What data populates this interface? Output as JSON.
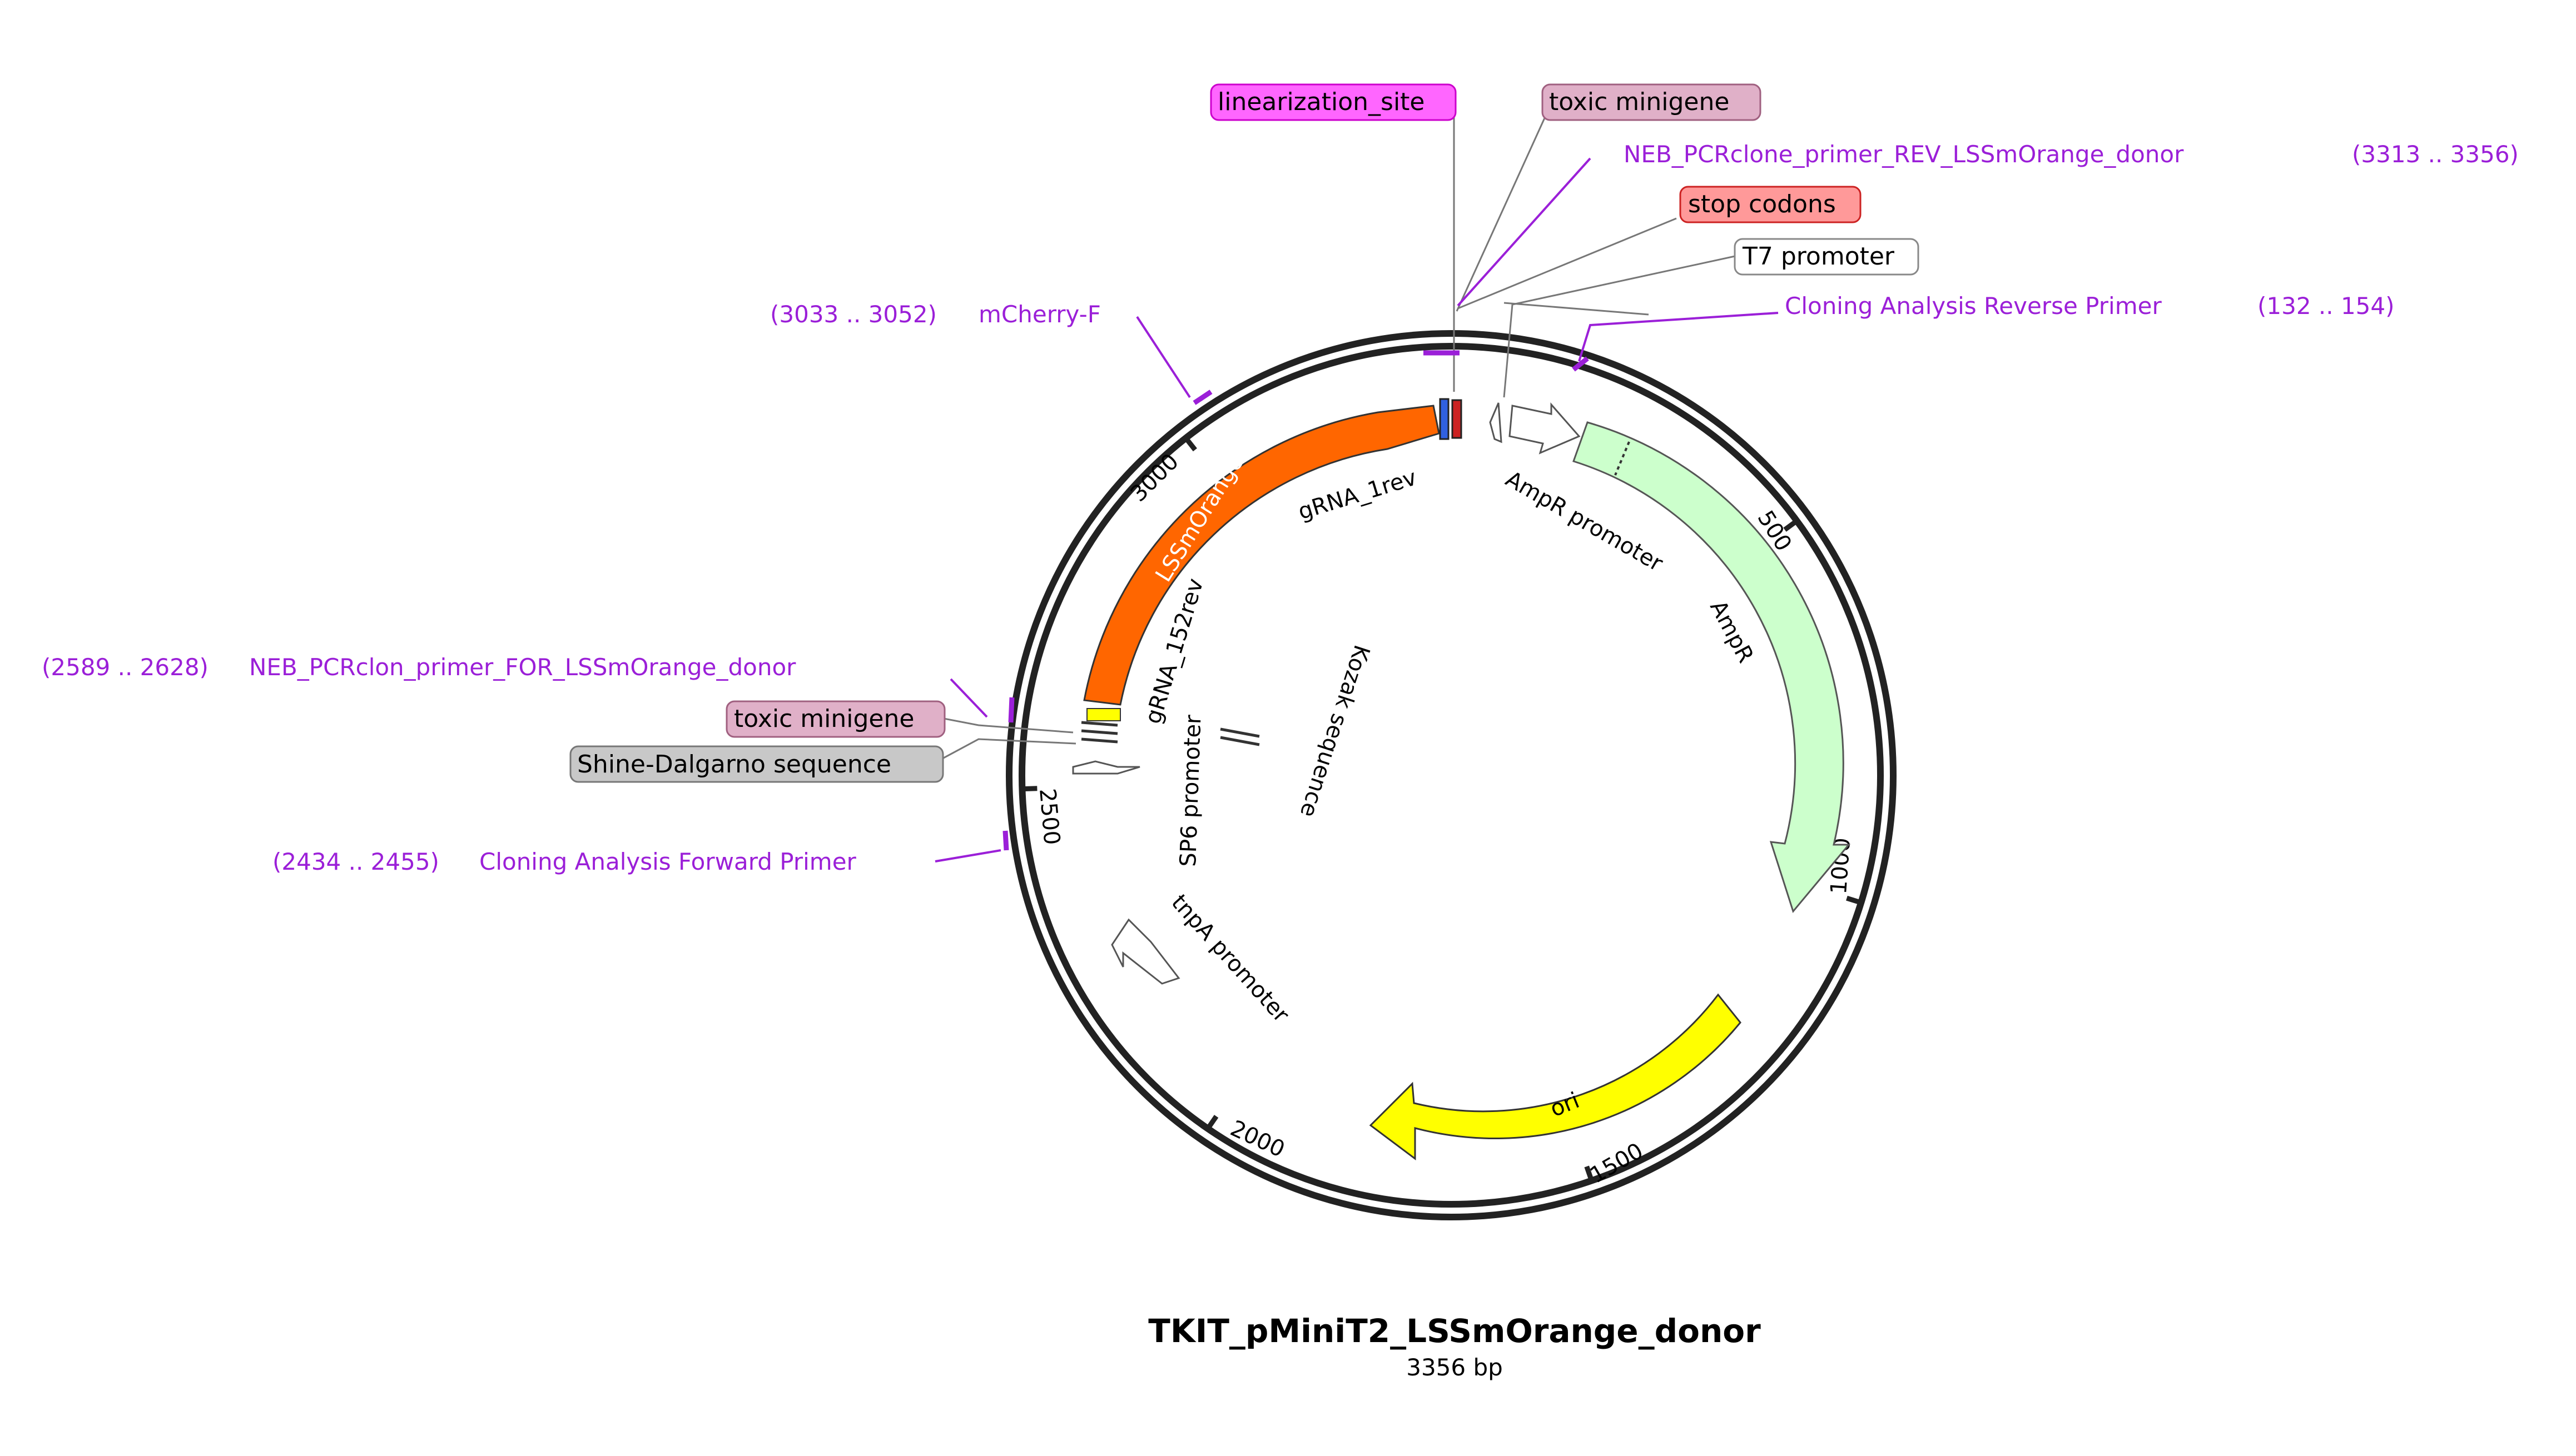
{
  "plasmid": {
    "name": "TKIT_pMiniT2_LSSmOrange_donor",
    "size_label": "3356 bp",
    "length": 3356
  },
  "ticks": [
    {
      "bp": 500,
      "label": "500"
    },
    {
      "bp": 1000,
      "label": "1000"
    },
    {
      "bp": 1500,
      "label": "1500"
    },
    {
      "bp": 2000,
      "label": "2000"
    },
    {
      "bp": 2500,
      "label": "2500"
    },
    {
      "bp": 3000,
      "label": "3000"
    }
  ],
  "features": {
    "lssmorange": {
      "label": "LSSmOrange",
      "color": "#ff6600"
    },
    "ampr": {
      "label": "AmpR",
      "color": "#ccffcc"
    },
    "ori": {
      "label": "ori",
      "color": "#ffff00"
    },
    "ampr_promoter": {
      "label": "AmpR promoter"
    },
    "tnpa_promoter": {
      "label": "tnpA promoter"
    },
    "grna_1rev": {
      "label": "gRNA_1rev"
    },
    "grna_152rev": {
      "label": "gRNA_152rev"
    },
    "sp6_promoter": {
      "label": "SP6 promoter"
    },
    "kozak": {
      "label": "Kozak sequence"
    }
  },
  "callouts": {
    "linearization_site": {
      "label": "linearization_site",
      "color": "#ff66ff"
    },
    "toxic_minigene_top": {
      "label": "toxic minigene",
      "color": "#e0b0c8"
    },
    "stop_codons": {
      "label": "stop codons",
      "color": "#ff9999"
    },
    "t7_promoter": {
      "label": "T7 promoter",
      "color": "#ffffff"
    },
    "toxic_minigene_left": {
      "label": "toxic minigene",
      "color": "#e0b0c8"
    },
    "shine_dalgarno": {
      "label": "Shine-Dalgarno sequence",
      "color": "#c8c8c8"
    }
  },
  "primers": {
    "neb_rev": {
      "name": "NEB_PCRclone_primer_REV_LSSmOrange_donor",
      "range": "(3313 .. 3356)"
    },
    "cloning_rev": {
      "name": "Cloning Analysis Reverse Primer",
      "range": "(132 .. 154)"
    },
    "mcherry_f": {
      "name": "mCherry-F",
      "range": "(3033 .. 3052)"
    },
    "neb_for": {
      "name": "NEB_PCRclon_primer_FOR_LSSmOrange_donor",
      "range": "(2589 .. 2628)"
    },
    "cloning_for": {
      "name": "Cloning Analysis Forward Primer",
      "range": "(2434 .. 2455)"
    }
  }
}
